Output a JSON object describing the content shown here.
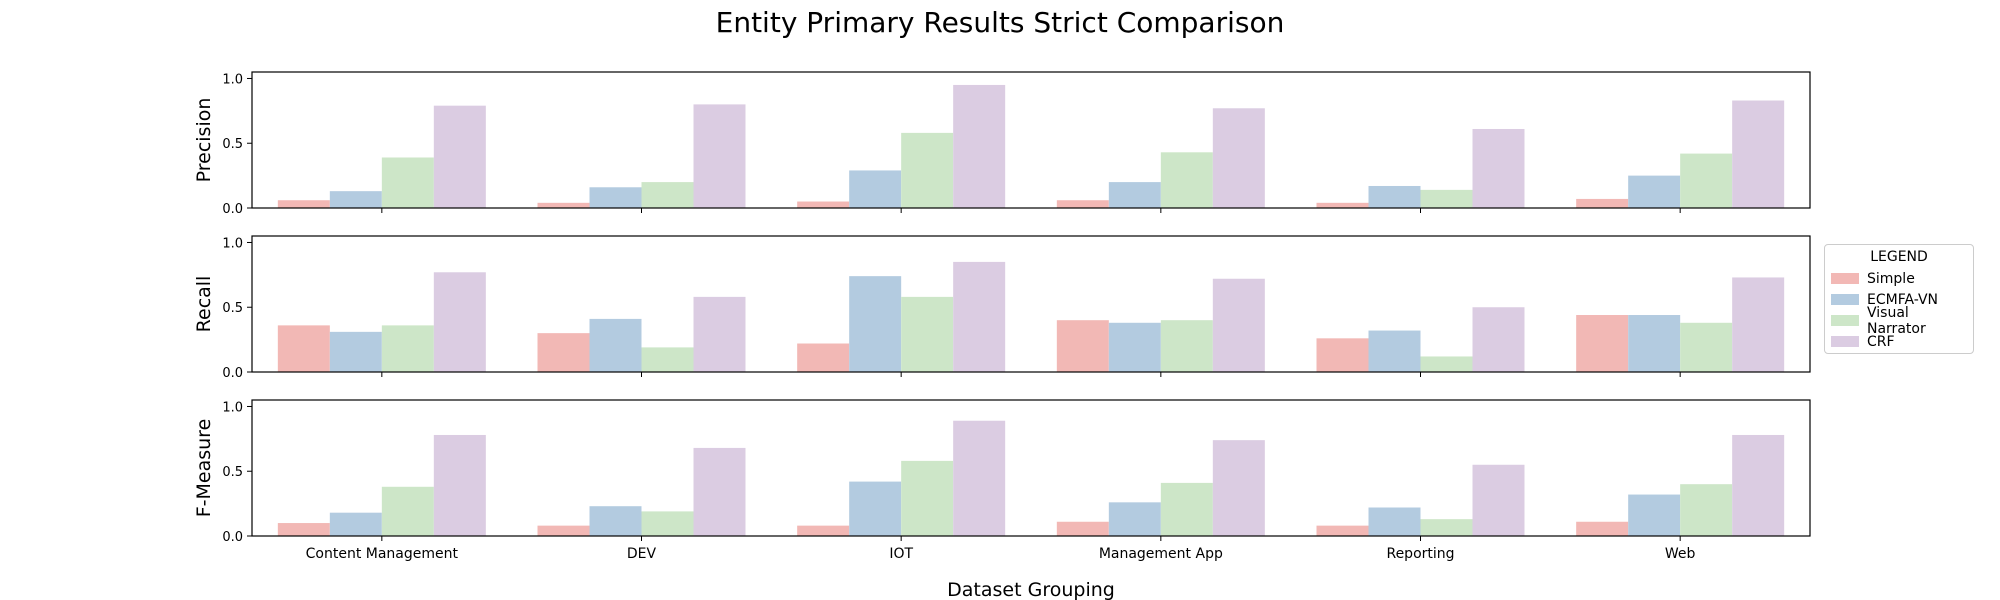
{
  "figure": {
    "title": "Entity Primary Results Strict Comparison",
    "xlabel": "Dataset Grouping"
  },
  "legend": {
    "title": "LEGEND",
    "placement": "right-center",
    "items": [
      {
        "name": "Simple",
        "color": "#f2b8b5"
      },
      {
        "name": "ECMFA-VN",
        "color": "#b3cbe0"
      },
      {
        "name": "Visual Narrator",
        "color": "#cde6c8"
      },
      {
        "name": "CRF",
        "color": "#dbcce2"
      }
    ]
  },
  "chart_data": [
    {
      "type": "bar",
      "ylabel": "Precision",
      "ylim": [
        0,
        1.05
      ],
      "yticks": [
        "0.0",
        "0.5",
        "1.0"
      ],
      "categories": [
        "Content Management",
        "DEV",
        "IOT",
        "Management App",
        "Reporting",
        "Web"
      ],
      "series": [
        {
          "name": "Simple",
          "values": [
            0.06,
            0.04,
            0.05,
            0.06,
            0.04,
            0.07
          ]
        },
        {
          "name": "ECMFA-VN",
          "values": [
            0.13,
            0.16,
            0.29,
            0.2,
            0.17,
            0.25
          ]
        },
        {
          "name": "Visual Narrator",
          "values": [
            0.39,
            0.2,
            0.58,
            0.43,
            0.14,
            0.42
          ]
        },
        {
          "name": "CRF",
          "values": [
            0.79,
            0.8,
            0.95,
            0.77,
            0.61,
            0.83
          ]
        }
      ]
    },
    {
      "type": "bar",
      "ylabel": "Recall",
      "ylim": [
        0,
        1.05
      ],
      "yticks": [
        "0.0",
        "0.5",
        "1.0"
      ],
      "categories": [
        "Content Management",
        "DEV",
        "IOT",
        "Management App",
        "Reporting",
        "Web"
      ],
      "series": [
        {
          "name": "Simple",
          "values": [
            0.36,
            0.3,
            0.22,
            0.4,
            0.26,
            0.44
          ]
        },
        {
          "name": "ECMFA-VN",
          "values": [
            0.31,
            0.41,
            0.74,
            0.38,
            0.32,
            0.44
          ]
        },
        {
          "name": "Visual Narrator",
          "values": [
            0.36,
            0.19,
            0.58,
            0.4,
            0.12,
            0.38
          ]
        },
        {
          "name": "CRF",
          "values": [
            0.77,
            0.58,
            0.85,
            0.72,
            0.5,
            0.73
          ]
        }
      ]
    },
    {
      "type": "bar",
      "ylabel": "F-Measure",
      "ylim": [
        0,
        1.05
      ],
      "yticks": [
        "0.0",
        "0.5",
        "1.0"
      ],
      "categories": [
        "Content Management",
        "DEV",
        "IOT",
        "Management App",
        "Reporting",
        "Web"
      ],
      "series": [
        {
          "name": "Simple",
          "values": [
            0.1,
            0.08,
            0.08,
            0.11,
            0.08,
            0.11
          ]
        },
        {
          "name": "ECMFA-VN",
          "values": [
            0.18,
            0.23,
            0.42,
            0.26,
            0.22,
            0.32
          ]
        },
        {
          "name": "Visual Narrator",
          "values": [
            0.38,
            0.19,
            0.58,
            0.41,
            0.13,
            0.4
          ]
        },
        {
          "name": "CRF",
          "values": [
            0.78,
            0.68,
            0.89,
            0.74,
            0.55,
            0.78
          ]
        }
      ]
    }
  ]
}
